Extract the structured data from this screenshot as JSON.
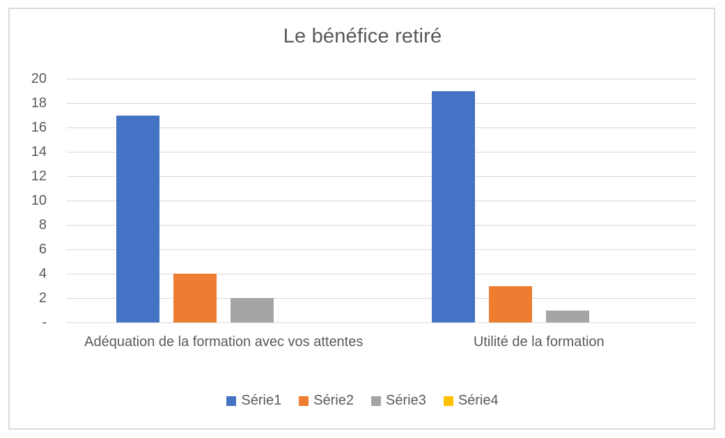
{
  "chart_data": {
    "type": "bar",
    "title": "Le bénéfice retiré",
    "categories": [
      "Adéquation de la formation avec vos attentes",
      "Utilité de la formation"
    ],
    "series": [
      {
        "name": "Série1",
        "color": "#4472C4",
        "values": [
          17,
          19
        ]
      },
      {
        "name": "Série2",
        "color": "#ED7D31",
        "values": [
          4,
          3
        ]
      },
      {
        "name": "Série3",
        "color": "#A5A5A5",
        "values": [
          2,
          1
        ]
      },
      {
        "name": "Série4",
        "color": "#FFC000",
        "values": [
          0,
          0
        ]
      }
    ],
    "xlabel": "",
    "ylabel": "",
    "ylim": [
      0,
      20
    ],
    "ytick_values": [
      0,
      2,
      4,
      6,
      8,
      10,
      12,
      14,
      16,
      18,
      20
    ],
    "ytick_labels": [
      "-",
      "2",
      "4",
      "6",
      "8",
      "10",
      "12",
      "14",
      "16",
      "18",
      "20"
    ],
    "grid": true,
    "legend_position": "bottom",
    "colors": {
      "title_text": "#595959",
      "axis_text": "#595959",
      "gridline": "#d9d9d9",
      "frame_border": "#d9d9d9",
      "background": "#ffffff"
    }
  }
}
